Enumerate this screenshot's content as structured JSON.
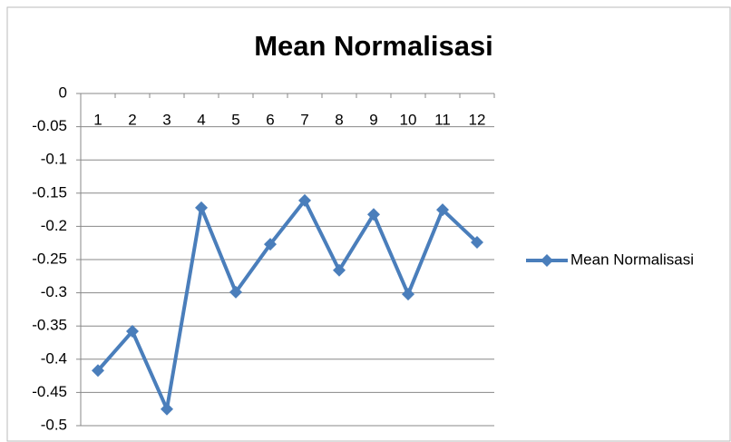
{
  "chart_data": {
    "type": "line",
    "title": "Mean Normalisasi",
    "categories": [
      "1",
      "2",
      "3",
      "4",
      "5",
      "6",
      "7",
      "8",
      "9",
      "10",
      "11",
      "12"
    ],
    "series": [
      {
        "name": "Mean Normalisasi",
        "color": "#4a7ebb",
        "values": [
          -0.417,
          -0.358,
          -0.475,
          -0.172,
          -0.299,
          -0.227,
          -0.161,
          -0.266,
          -0.182,
          -0.302,
          -0.175,
          -0.224
        ]
      }
    ],
    "ylim": [
      -0.5,
      0
    ],
    "yticks": [
      0,
      -0.05,
      -0.1,
      -0.15,
      -0.2,
      -0.25,
      -0.3,
      -0.35,
      -0.4,
      -0.45,
      -0.5
    ],
    "grid": true,
    "legend": "right"
  }
}
